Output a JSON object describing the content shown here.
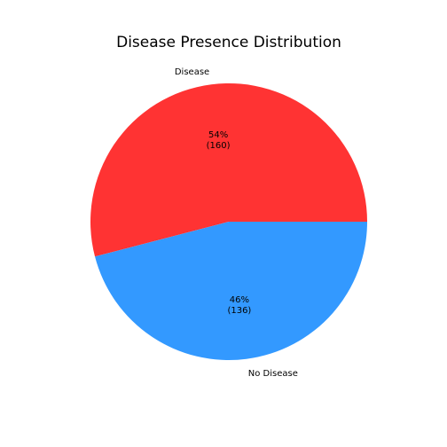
{
  "chart_data": {
    "type": "pie",
    "title": "Disease Presence Distribution",
    "categories": [
      "Disease",
      "No Disease"
    ],
    "values": [
      160,
      136
    ],
    "percent_labels": [
      "54%",
      "46%"
    ],
    "count_labels": [
      "(160)",
      "(136)"
    ],
    "colors": [
      "#ff3333",
      "#3399ff"
    ],
    "start_angle_deg": 0,
    "direction": "counterclockwise",
    "legend": "none"
  }
}
